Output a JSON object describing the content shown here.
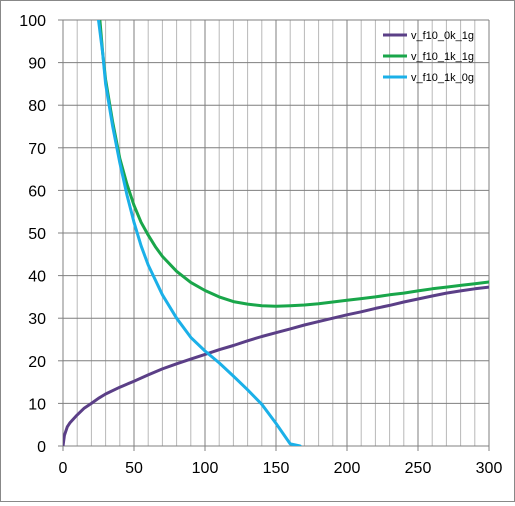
{
  "chart_data": {
    "type": "line",
    "title": "",
    "xlabel": "",
    "ylabel": "",
    "xlim": [
      0,
      300
    ],
    "ylim": [
      0,
      100
    ],
    "x_ticks": [
      0,
      50,
      100,
      150,
      200,
      250,
      300
    ],
    "y_ticks": [
      0,
      10,
      20,
      30,
      40,
      50,
      60,
      70,
      80,
      90,
      100
    ],
    "x_minor_step": 10,
    "grid": true,
    "legend_position": "top-right",
    "series": [
      {
        "name": "v_f10_0k_1g",
        "color": "#5b3f87",
        "points": [
          [
            0,
            0
          ],
          [
            1,
            2.5
          ],
          [
            3,
            4.5
          ],
          [
            5,
            5.5
          ],
          [
            10,
            7.3
          ],
          [
            15,
            8.9
          ],
          [
            20,
            10.0
          ],
          [
            25,
            11.2
          ],
          [
            30,
            12.2
          ],
          [
            40,
            13.8
          ],
          [
            50,
            15.2
          ],
          [
            60,
            16.7
          ],
          [
            70,
            18.1
          ],
          [
            80,
            19.3
          ],
          [
            90,
            20.4
          ],
          [
            100,
            21.5
          ],
          [
            110,
            22.6
          ],
          [
            120,
            23.6
          ],
          [
            130,
            24.7
          ],
          [
            140,
            25.7
          ],
          [
            150,
            26.6
          ],
          [
            160,
            27.5
          ],
          [
            170,
            28.4
          ],
          [
            180,
            29.2
          ],
          [
            190,
            30.0
          ],
          [
            200,
            30.8
          ],
          [
            210,
            31.5
          ],
          [
            220,
            32.3
          ],
          [
            230,
            33.0
          ],
          [
            240,
            33.8
          ],
          [
            250,
            34.5
          ],
          [
            260,
            35.2
          ],
          [
            270,
            35.9
          ],
          [
            280,
            36.4
          ],
          [
            290,
            36.9
          ],
          [
            300,
            37.3
          ]
        ]
      },
      {
        "name": "v_f10_1k_1g",
        "color": "#19a64a",
        "points": [
          [
            26,
            100
          ],
          [
            28,
            92
          ],
          [
            30,
            86
          ],
          [
            35,
            76
          ],
          [
            40,
            67.5
          ],
          [
            45,
            61.5
          ],
          [
            50,
            56.5
          ],
          [
            55,
            52.5
          ],
          [
            60,
            49.5
          ],
          [
            65,
            46.8
          ],
          [
            70,
            44.5
          ],
          [
            80,
            41.0
          ],
          [
            90,
            38.4
          ],
          [
            100,
            36.5
          ],
          [
            110,
            35.0
          ],
          [
            120,
            33.9
          ],
          [
            130,
            33.3
          ],
          [
            140,
            32.9
          ],
          [
            150,
            32.8
          ],
          [
            160,
            32.9
          ],
          [
            170,
            33.1
          ],
          [
            180,
            33.4
          ],
          [
            190,
            33.8
          ],
          [
            200,
            34.2
          ],
          [
            210,
            34.6
          ],
          [
            220,
            35.0
          ],
          [
            230,
            35.5
          ],
          [
            240,
            35.9
          ],
          [
            250,
            36.4
          ],
          [
            260,
            36.9
          ],
          [
            270,
            37.3
          ],
          [
            280,
            37.7
          ],
          [
            290,
            38.1
          ],
          [
            300,
            38.5
          ]
        ]
      },
      {
        "name": "v_f10_1k_0g",
        "color": "#1bb0e8",
        "points": [
          [
            25,
            100
          ],
          [
            28,
            92
          ],
          [
            30,
            85
          ],
          [
            35,
            75
          ],
          [
            40,
            66.5
          ],
          [
            45,
            59
          ],
          [
            50,
            52.5
          ],
          [
            55,
            47
          ],
          [
            60,
            42.5
          ],
          [
            70,
            35.5
          ],
          [
            80,
            30
          ],
          [
            90,
            25.5
          ],
          [
            100,
            22.3
          ],
          [
            110,
            19.5
          ],
          [
            120,
            16.4
          ],
          [
            130,
            13.2
          ],
          [
            140,
            9.8
          ],
          [
            150,
            5.3
          ],
          [
            160,
            0.5
          ],
          [
            167,
            0
          ]
        ]
      }
    ]
  }
}
